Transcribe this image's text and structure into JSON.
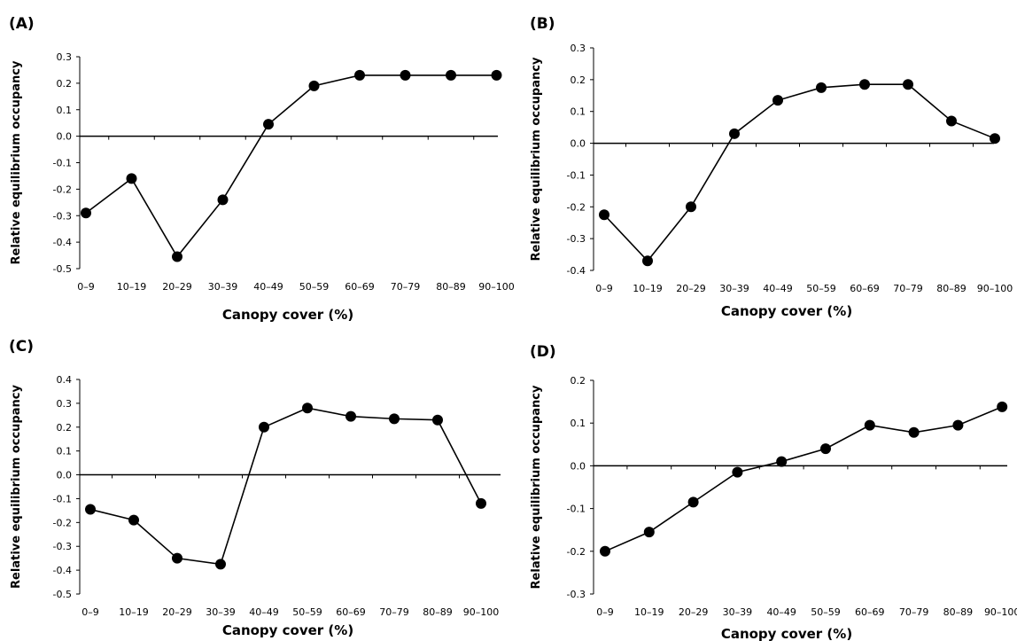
{
  "chart_data": [
    {
      "type": "line",
      "panel_label": "(A)",
      "xlabel": "Canopy cover (%)",
      "ylabel": "Relative equilibrium occupancy",
      "categories": [
        "0–9",
        "10–19",
        "20–29",
        "30–39",
        "40–49",
        "50–59",
        "60–69",
        "70–79",
        "80–89",
        "90–100"
      ],
      "values": [
        -0.29,
        -0.16,
        -0.455,
        -0.24,
        0.045,
        0.19,
        0.23,
        0.23,
        0.23,
        0.23
      ],
      "ylim": [
        -0.5,
        0.3
      ],
      "yticks": [
        0.3,
        0.2,
        0.1,
        0.0,
        -0.1,
        -0.2,
        -0.3,
        -0.4,
        -0.5
      ],
      "ytick_labels": [
        "0.3",
        "0.2",
        "0.1",
        "0.0",
        "-0.1",
        "-0.2",
        "-0.3",
        "-0.4",
        "-0.5"
      ],
      "grid": false,
      "legend": "none"
    },
    {
      "type": "line",
      "panel_label": "(B)",
      "xlabel": "Canopy cover (%)",
      "ylabel": "Relative equilibrium occupancy",
      "categories": [
        "0–9",
        "10–19",
        "20–29",
        "30–39",
        "40–49",
        "50–59",
        "60–69",
        "70–79",
        "80–89",
        "90–100"
      ],
      "values": [
        -0.225,
        -0.37,
        -0.2,
        0.03,
        0.135,
        0.175,
        0.185,
        0.185,
        0.07,
        0.015
      ],
      "ylim": [
        -0.4,
        0.3
      ],
      "yticks": [
        0.3,
        0.2,
        0.1,
        0.0,
        -0.1,
        -0.2,
        -0.3,
        -0.4
      ],
      "ytick_labels": [
        "0.3",
        "0.2",
        "0.1",
        "0.0",
        "-0.1",
        "-0.2",
        "-0.3",
        "-0.4"
      ],
      "grid": false,
      "legend": "none"
    },
    {
      "type": "line",
      "panel_label": "(C)",
      "xlabel": "Canopy cover (%)",
      "ylabel": "Relative equilibrium occupancy",
      "categories": [
        "0–9",
        "10–19",
        "20–29",
        "30–39",
        "40–49",
        "50–59",
        "60–69",
        "70–79",
        "80–89",
        "90–100"
      ],
      "values": [
        -0.145,
        -0.19,
        -0.35,
        -0.375,
        0.2,
        0.28,
        0.245,
        0.235,
        0.23,
        -0.12
      ],
      "ylim": [
        -0.5,
        0.4
      ],
      "yticks": [
        0.4,
        0.3,
        0.2,
        0.1,
        0.0,
        -0.1,
        -0.2,
        -0.3,
        -0.4,
        -0.5
      ],
      "ytick_labels": [
        "0.4",
        "0.3",
        "0.2",
        "0.1",
        "0.0",
        "-0.1",
        "-0.2",
        "-0.3",
        "-0.4",
        "-0.5"
      ],
      "grid": false,
      "legend": "none"
    },
    {
      "type": "line",
      "panel_label": "(D)",
      "xlabel": "Canopy cover (%)",
      "ylabel": "Relative equilibrium occupancy",
      "categories": [
        "0–9",
        "10–19",
        "20–29",
        "30–39",
        "40–49",
        "50–59",
        "60–69",
        "70–79",
        "80–89",
        "90–100"
      ],
      "values": [
        -0.2,
        -0.155,
        -0.085,
        -0.015,
        0.01,
        0.04,
        0.095,
        0.078,
        0.095,
        0.138
      ],
      "ylim": [
        -0.3,
        0.2
      ],
      "yticks": [
        0.2,
        0.1,
        0.0,
        -0.1,
        -0.2,
        -0.3
      ],
      "ytick_labels": [
        "0.2",
        "0.1",
        "0.0",
        "-0.1",
        "-0.2",
        "-0.3"
      ],
      "grid": false,
      "legend": "none"
    }
  ]
}
